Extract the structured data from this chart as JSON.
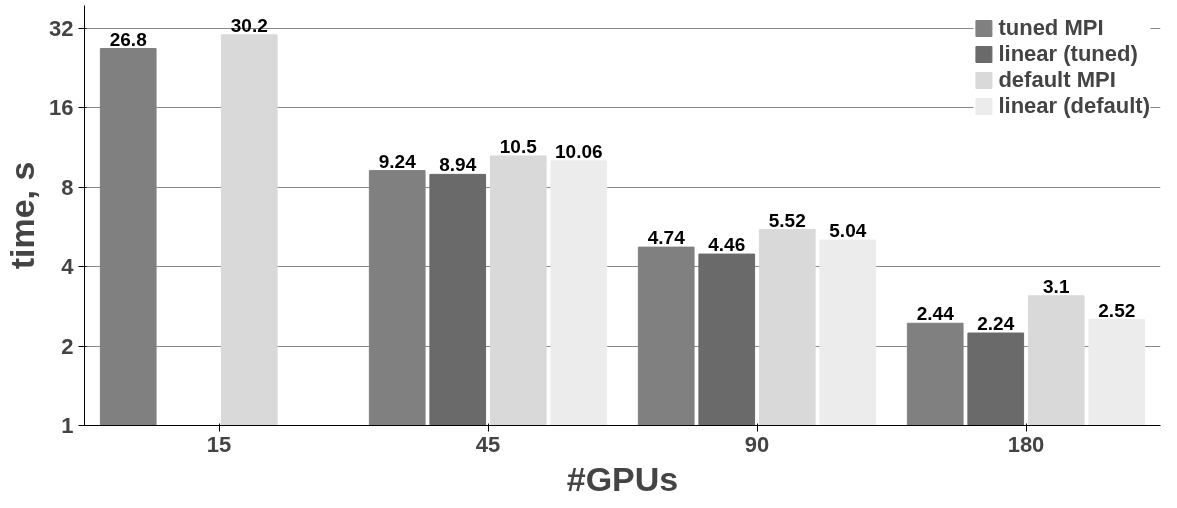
{
  "chart_data": {
    "type": "bar",
    "xlabel": "#GPUs",
    "ylabel": "time, s",
    "categories": [
      "15",
      "45",
      "90",
      "180"
    ],
    "series": [
      {
        "name": "tuned MPI",
        "color": "#808080",
        "values": [
          26.8,
          9.24,
          4.74,
          2.44
        ]
      },
      {
        "name": "linear (tuned)",
        "color": "#6a6a6a",
        "values": [
          null,
          8.94,
          4.46,
          2.24
        ]
      },
      {
        "name": "default MPI",
        "color": "#d9d9d9",
        "values": [
          30.2,
          10.5,
          5.52,
          3.1
        ]
      },
      {
        "name": "linear (default)",
        "color": "#ececec",
        "values": [
          null,
          10.06,
          5.04,
          2.52
        ]
      }
    ],
    "log": "y",
    "ylim": [
      1,
      39
    ],
    "yticks": [
      1,
      2,
      4,
      8,
      16,
      32
    ],
    "grid": "y",
    "legend": "top right",
    "data_labels": true
  }
}
